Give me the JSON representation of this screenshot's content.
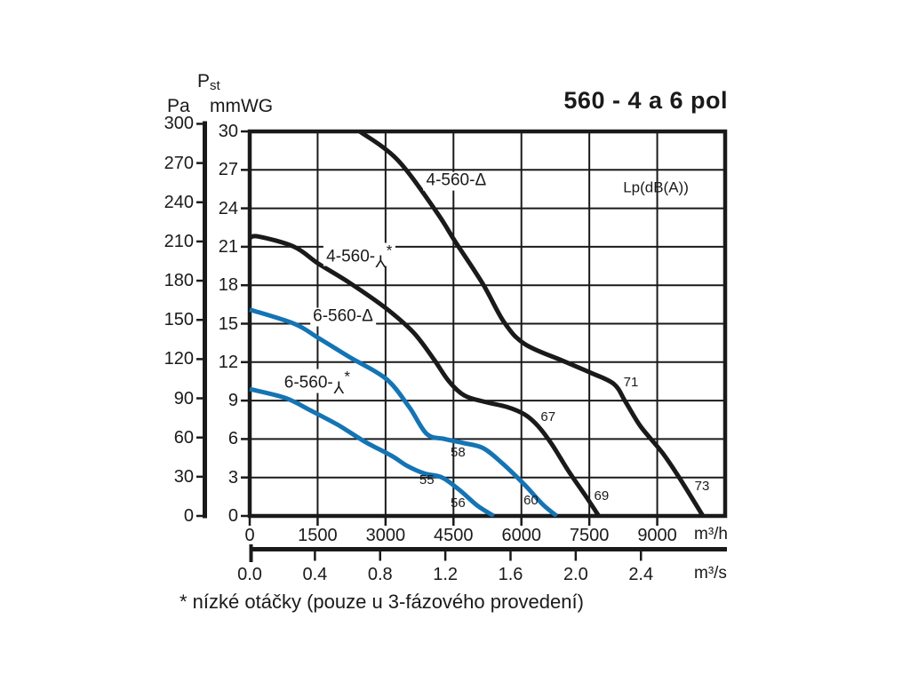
{
  "footnote": "* nízké otáčky (pouze u 3-fázového provedení)",
  "colors": {
    "black": "#1a1a1a",
    "blue": "#1474b4",
    "background": "#ffffff"
  },
  "chart_data": {
    "type": "line",
    "title": "560 - 4 a 6 pol",
    "lp_note": "Lp(dB(A))",
    "y_axis": {
      "label_main": "P",
      "label_sub": "st",
      "unit_primary": "Pa",
      "ticks_primary": [
        300,
        270,
        240,
        210,
        180,
        150,
        120,
        90,
        60,
        30,
        0
      ],
      "unit_secondary": "mmWG",
      "ticks_secondary": [
        30,
        27,
        24,
        21,
        18,
        15,
        12,
        9,
        6,
        3,
        0
      ],
      "range_secondary": [
        0,
        30
      ],
      "grid_step_mmwg": 3
    },
    "x_axis": {
      "unit_primary": "m³/h",
      "ticks_primary": [
        0,
        1500,
        3000,
        4500,
        6000,
        7500,
        9000
      ],
      "range_primary": [
        0,
        10500
      ],
      "grid_step_m3h": 1500,
      "unit_secondary": "m³/s",
      "ticks_secondary": [
        "0.0",
        "0.4",
        "0.8",
        "1.2",
        "1.6",
        "2.0",
        "2.4"
      ],
      "secondary_to_primary_factor": 3600
    },
    "grid": {
      "visible": true
    },
    "series": [
      {
        "id": "4-560-delta",
        "name": "4-560-Δ",
        "pole": "4-pol",
        "connection": "delta",
        "color": "#1a1a1a",
        "points": [
          [
            2430,
            30
          ],
          [
            3260,
            27.8
          ],
          [
            4110,
            23.8
          ],
          [
            4540,
            21.4
          ],
          [
            5150,
            18.1
          ],
          [
            5620,
            15.1
          ],
          [
            6080,
            13.4
          ],
          [
            6920,
            12.1
          ],
          [
            7510,
            11.2
          ],
          [
            8040,
            10.3
          ],
          [
            8300,
            8.9
          ],
          [
            8630,
            7.0
          ],
          [
            9120,
            4.9
          ],
          [
            9520,
            2.8
          ],
          [
            10010,
            0
          ]
        ]
      },
      {
        "id": "4-560-star",
        "name": "4-560-Y*",
        "pole": "4-pol",
        "connection": "star",
        "color": "#1a1a1a",
        "points": [
          [
            0,
            21.7
          ],
          [
            200,
            21.8
          ],
          [
            980,
            21.0
          ],
          [
            1510,
            19.7
          ],
          [
            2200,
            18.2
          ],
          [
            3010,
            16.2
          ],
          [
            3620,
            14.3
          ],
          [
            4070,
            12.2
          ],
          [
            4400,
            10.5
          ],
          [
            4740,
            9.4
          ],
          [
            5190,
            8.9
          ],
          [
            5680,
            8.5
          ],
          [
            6080,
            7.9
          ],
          [
            6370,
            7.0
          ],
          [
            6670,
            5.6
          ],
          [
            7060,
            3.4
          ],
          [
            7410,
            1.6
          ],
          [
            7710,
            0
          ]
        ]
      },
      {
        "id": "6-560-delta",
        "name": "6-560-Δ",
        "pole": "6-pol",
        "connection": "delta",
        "color": "#1474b4",
        "points": [
          [
            0,
            16.1
          ],
          [
            980,
            15.0
          ],
          [
            1510,
            13.9
          ],
          [
            2200,
            12.4
          ],
          [
            3010,
            10.7
          ],
          [
            3520,
            8.5
          ],
          [
            3910,
            6.4
          ],
          [
            4310,
            6.0
          ],
          [
            4700,
            5.7
          ],
          [
            5150,
            5.3
          ],
          [
            5580,
            4.1
          ],
          [
            6080,
            2.4
          ],
          [
            6470,
            0.9
          ],
          [
            6780,
            0
          ]
        ]
      },
      {
        "id": "6-560-star",
        "name": "6-560-Y*",
        "pole": "6-pol",
        "connection": "star",
        "color": "#1474b4",
        "points": [
          [
            0,
            9.9
          ],
          [
            790,
            9.2
          ],
          [
            1360,
            8.2
          ],
          [
            1950,
            7.1
          ],
          [
            2540,
            5.8
          ],
          [
            3130,
            4.7
          ],
          [
            3480,
            3.9
          ],
          [
            3870,
            3.3
          ],
          [
            4250,
            3.0
          ],
          [
            4640,
            2.0
          ],
          [
            5030,
            0.8
          ],
          [
            5390,
            0
          ]
        ]
      }
    ],
    "curve_labels": [
      {
        "id": "4-560-delta",
        "prefix": "4-560-",
        "symbol": "delta",
        "star": false,
        "q": 4560,
        "p": 26.1
      },
      {
        "id": "4-560-star",
        "prefix": "4-560-",
        "symbol": "wye",
        "star": true,
        "q": 2420,
        "p": 20.4
      },
      {
        "id": "6-560-delta",
        "prefix": "6-560-",
        "symbol": "delta",
        "star": false,
        "q": 2060,
        "p": 15.5
      },
      {
        "id": "6-560-star",
        "prefix": "6-560-",
        "symbol": "wye",
        "star": true,
        "q": 1490,
        "p": 10.5
      }
    ],
    "delta_glyph": "Δ",
    "wye_glyph": "Y",
    "star_glyph": "*",
    "noise_labels": [
      {
        "text": "58",
        "q": 4600,
        "p": 4.9
      },
      {
        "text": "55",
        "q": 3910,
        "p": 2.8
      },
      {
        "text": "56",
        "q": 4600,
        "p": 1.0
      },
      {
        "text": "60",
        "q": 6210,
        "p": 1.2
      },
      {
        "text": "67",
        "q": 6590,
        "p": 7.7
      },
      {
        "text": "69",
        "q": 7770,
        "p": 1.5
      },
      {
        "text": "71",
        "q": 8420,
        "p": 10.4
      },
      {
        "text": "73",
        "q": 9990,
        "p": 2.3
      }
    ],
    "lp_note_pos": {
      "q": 8970,
      "p": 25.6
    }
  }
}
